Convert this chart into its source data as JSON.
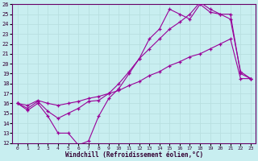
{
  "xlabel": "Windchill (Refroidissement éolien,°C)",
  "bg_color": "#c8eef0",
  "line_color": "#990099",
  "grid_color": "#b8dfe0",
  "xlim": [
    -0.5,
    23.5
  ],
  "ylim": [
    12,
    26
  ],
  "xticks": [
    0,
    1,
    2,
    3,
    4,
    5,
    6,
    7,
    8,
    9,
    10,
    11,
    12,
    13,
    14,
    15,
    16,
    17,
    18,
    19,
    20,
    21,
    22,
    23
  ],
  "yticks": [
    12,
    13,
    14,
    15,
    16,
    17,
    18,
    19,
    20,
    21,
    22,
    23,
    24,
    25,
    26
  ],
  "series1_x": [
    0,
    1,
    2,
    3,
    4,
    5,
    6,
    7,
    8,
    9,
    10,
    11,
    12,
    13,
    14,
    15,
    16,
    17,
    18,
    19,
    20,
    21,
    22,
    23
  ],
  "series1_y": [
    16.0,
    15.3,
    16.0,
    14.7,
    13.0,
    13.0,
    11.8,
    12.2,
    14.7,
    16.5,
    17.5,
    19.0,
    20.5,
    22.5,
    23.5,
    25.5,
    25.0,
    24.5,
    26.0,
    25.2,
    25.0,
    24.5,
    19.2,
    18.5
  ],
  "series2_x": [
    0,
    1,
    2,
    3,
    4,
    5,
    6,
    7,
    8,
    9,
    10,
    11,
    12,
    13,
    14,
    15,
    16,
    17,
    18,
    19,
    20,
    21,
    22,
    23
  ],
  "series2_y": [
    16.0,
    15.5,
    16.2,
    15.2,
    14.5,
    15.0,
    15.5,
    16.2,
    16.3,
    17.0,
    18.0,
    19.2,
    20.5,
    21.5,
    22.5,
    23.5,
    24.2,
    25.0,
    26.2,
    25.5,
    25.0,
    25.0,
    19.0,
    18.5
  ],
  "series3_x": [
    0,
    1,
    2,
    3,
    4,
    5,
    6,
    7,
    8,
    9,
    10,
    11,
    12,
    13,
    14,
    15,
    16,
    17,
    18,
    19,
    20,
    21,
    22,
    23
  ],
  "series3_y": [
    16.0,
    15.8,
    16.3,
    16.0,
    15.8,
    16.0,
    16.2,
    16.5,
    16.7,
    17.0,
    17.3,
    17.8,
    18.2,
    18.8,
    19.2,
    19.8,
    20.2,
    20.7,
    21.0,
    21.5,
    22.0,
    22.5,
    18.5,
    18.5
  ]
}
